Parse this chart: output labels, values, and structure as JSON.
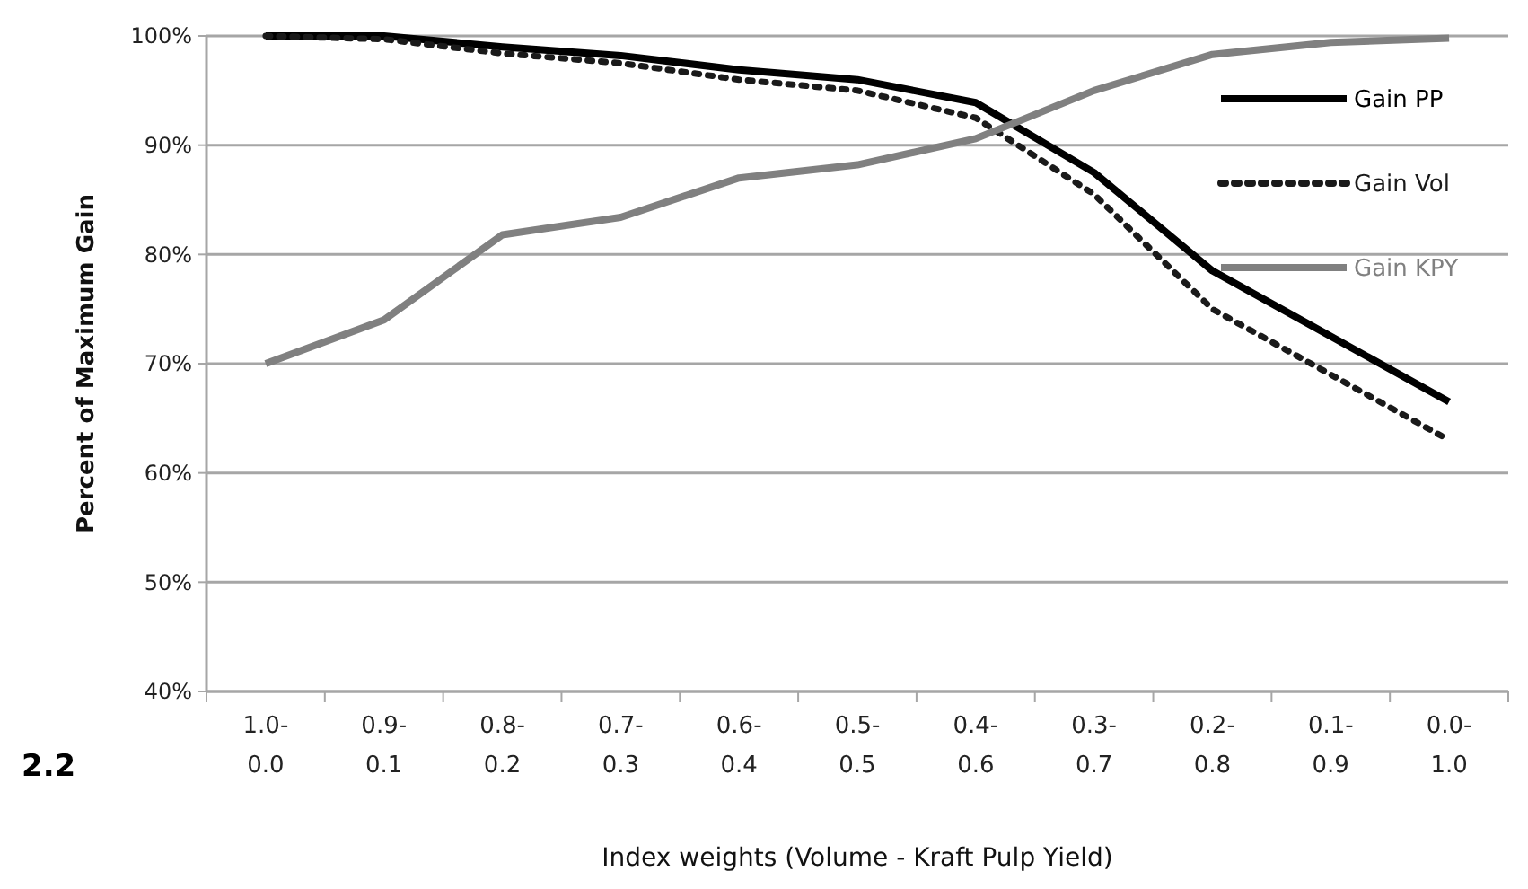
{
  "chart_data": {
    "type": "line",
    "xlabel": "Index weights (Volume - Kraft Pulp Yield)",
    "ylabel": "Percent of Maximum Gain",
    "categories": [
      "1.0-\n0.0",
      "0.9-\n0.1",
      "0.8-\n0.2",
      "0.7-\n0.3",
      "0.6-\n0.4",
      "0.5-\n0.5",
      "0.4-\n0.6",
      "0.3-\n0.7",
      "0.2-\n0.8",
      "0.1-\n0.9",
      "0.0-\n1.0"
    ],
    "series": [
      {
        "name": "Gain PP",
        "color": "#000000",
        "line_style": "solid",
        "values": [
          100,
          100,
          99,
          98.2,
          96.9,
          96,
          93.9,
          87.5,
          78.5,
          72.5,
          66.5
        ]
      },
      {
        "name": "Gain Vol",
        "color": "#1a1a1a",
        "line_style": "dotted",
        "values": [
          100,
          99.7,
          98.4,
          97.5,
          96,
          95,
          92.5,
          85.5,
          75,
          69,
          63
        ]
      },
      {
        "name": "Gain KPY",
        "color": "#808080",
        "line_style": "solid",
        "values": [
          70,
          74,
          81.8,
          83.4,
          87,
          88.2,
          90.6,
          95,
          98.3,
          99.4,
          99.8
        ]
      }
    ],
    "ylim": [
      40,
      100
    ],
    "yticks": [
      {
        "value": 40,
        "label": "40%"
      },
      {
        "value": 50,
        "label": "50%"
      },
      {
        "value": 60,
        "label": "60%"
      },
      {
        "value": 70,
        "label": "70%"
      },
      {
        "value": 80,
        "label": "80%"
      },
      {
        "value": 90,
        "label": "90%"
      },
      {
        "value": 100,
        "label": "100%"
      }
    ],
    "grid": "y",
    "legend": "right",
    "annotations": [
      "2.2"
    ]
  }
}
